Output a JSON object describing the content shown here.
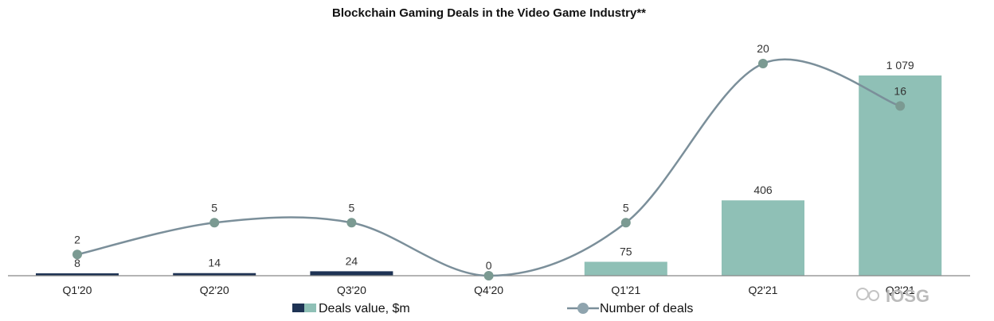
{
  "chart_data": {
    "type": "bar",
    "title": "Blockchain Gaming Deals in the Video Game Industry**",
    "categories": [
      "Q1'20",
      "Q2'20",
      "Q3'20",
      "Q4'20",
      "Q1'21",
      "Q2'21",
      "Q3'21"
    ],
    "series": [
      {
        "name": "Deals value, $m",
        "kind": "bar",
        "values": [
          8,
          14,
          24,
          0,
          75,
          406,
          1079
        ],
        "value_labels": [
          "8",
          "14",
          "24",
          "0",
          "75",
          "406",
          "1 079"
        ],
        "colors": [
          "#1e3354",
          "#1e3354",
          "#1e3354",
          "#1e3354",
          "#8fc0b6",
          "#8fc0b6",
          "#8fc0b6"
        ]
      },
      {
        "name": "Number of deals",
        "kind": "line",
        "values": [
          2,
          5,
          5,
          0,
          5,
          20,
          16
        ],
        "value_labels": [
          "2",
          "5",
          "5",
          "",
          "5",
          "20",
          "16"
        ],
        "color": "#7b8f9a",
        "marker_color": "#7b9a92"
      }
    ],
    "ylim_bars": [
      0,
      1079
    ],
    "ylim_line": [
      0,
      20
    ],
    "grid": false,
    "legend_position": "bottom"
  },
  "legend": {
    "bar_label": "Deals value, $m",
    "line_label": "Number of deals"
  },
  "watermark": "IOSG"
}
